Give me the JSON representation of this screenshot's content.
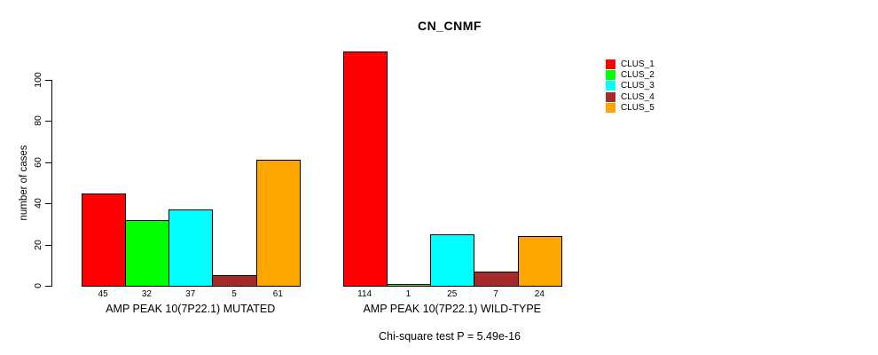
{
  "chart_data": {
    "type": "bar",
    "title": "CN_CNMF",
    "ylabel": "number of cases",
    "xlabel": "",
    "ylim": [
      0,
      100
    ],
    "yticks": [
      0,
      20,
      40,
      60,
      80,
      100
    ],
    "grid": false,
    "show_bar_value_labels": true,
    "categories": [
      "AMP PEAK 10(7P22.1) MUTATED",
      "AMP PEAK 10(7P22.1) WILD-TYPE"
    ],
    "series": [
      {
        "name": "CLUS_1",
        "color": "#ff0000",
        "values": [
          45,
          114
        ]
      },
      {
        "name": "CLUS_2",
        "color": "#00ff00",
        "values": [
          32,
          1
        ]
      },
      {
        "name": "CLUS_3",
        "color": "#00ffff",
        "values": [
          37,
          25
        ]
      },
      {
        "name": "CLUS_4",
        "color": "#a52a2a",
        "values": [
          5,
          7
        ]
      },
      {
        "name": "CLUS_5",
        "color": "#ffa500",
        "values": [
          61,
          24
        ]
      }
    ],
    "legend": {
      "position": "right",
      "entries": [
        "CLUS_1",
        "CLUS_2",
        "CLUS_3",
        "CLUS_4",
        "CLUS_5"
      ]
    },
    "annotation": "Chi-square test P = 5.49e-16"
  }
}
